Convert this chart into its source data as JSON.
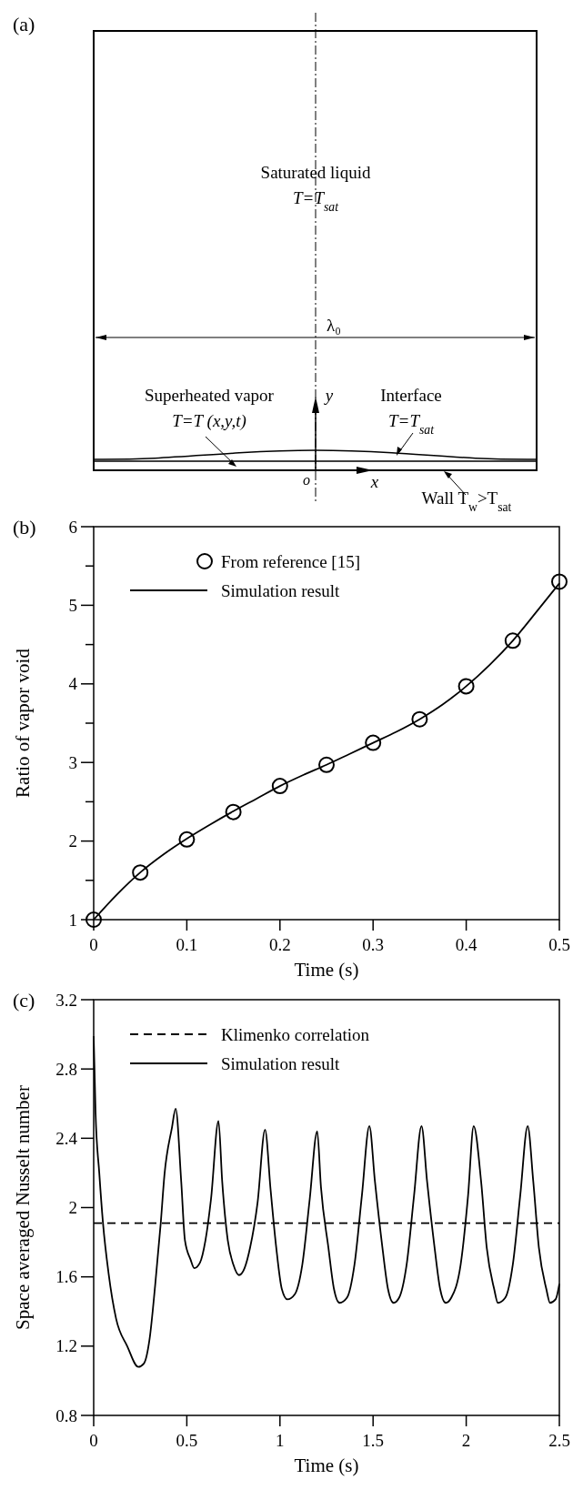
{
  "chart_data": [
    {
      "type": "other",
      "title": "(a)",
      "annotations": [
        "Saturated liquid",
        "T=T$_{sat}$",
        "λ₀",
        "Superheated vapor",
        "T=T (x,y,t)",
        "Interface",
        "T=T$_{sat}$",
        "y",
        "o",
        "x",
        "Wall  T$_{w}$>T$_{sat}$"
      ]
    },
    {
      "type": "line",
      "title": "(b)",
      "xlabel": "Time (s)",
      "ylabel": "Ratio of vapor void",
      "xlim": [
        0,
        0.5
      ],
      "ylim": [
        1,
        6
      ],
      "xticks": [
        0,
        0.1,
        0.2,
        0.3,
        0.4,
        0.5
      ],
      "yticks": [
        1,
        {
          "value": 1.5,
          "label": null
        },
        2,
        {
          "value": 2.5,
          "label": null
        },
        3,
        {
          "value": 3.5,
          "label": null
        },
        4,
        {
          "value": 4.5,
          "label": null
        },
        5,
        {
          "value": 5.5,
          "label": null
        },
        6
      ],
      "legend": "top left",
      "series": [
        {
          "name": "From reference [15]",
          "type": "scatter",
          "marker": "circle",
          "color": "#000000",
          "x": [
            0,
            0.05,
            0.1,
            0.15,
            0.2,
            0.25,
            0.3,
            0.35,
            0.4,
            0.45,
            0.5
          ],
          "values": [
            1,
            1.6,
            2.02,
            2.37,
            2.7,
            2.97,
            3.25,
            3.55,
            3.97,
            4.55,
            5.3
          ]
        },
        {
          "name": "Simulation result",
          "type": "line",
          "line_style": "solid",
          "color": "#000000",
          "x": [
            0,
            0.025,
            0.05,
            0.075,
            0.1,
            0.125,
            0.15,
            0.175,
            0.2,
            0.225,
            0.25,
            0.275,
            0.3,
            0.325,
            0.35,
            0.375,
            0.4,
            0.425,
            0.45,
            0.475,
            0.5
          ],
          "values": [
            1,
            1.32,
            1.6,
            1.83,
            2.03,
            2.21,
            2.38,
            2.54,
            2.7,
            2.84,
            2.97,
            3.11,
            3.25,
            3.39,
            3.55,
            3.74,
            3.97,
            4.24,
            4.55,
            4.91,
            5.28
          ]
        }
      ]
    },
    {
      "type": "line",
      "title": "(c)",
      "xlabel": "Time (s)",
      "ylabel": "Space averaged Nusselt number",
      "xlim": [
        0,
        2.5
      ],
      "ylim": [
        0.8,
        3.2
      ],
      "xticks": [
        0,
        0.5,
        1,
        1.5,
        2,
        2.5
      ],
      "yticks": [
        0.8,
        1.2,
        1.6,
        2,
        2.4,
        2.8,
        3.2
      ],
      "legend": "top left",
      "series": [
        {
          "name": "Klimenko correlation",
          "type": "line",
          "line_style": "dashed",
          "color": "#000000",
          "x": [
            0,
            2.5
          ],
          "values": [
            1.91,
            1.91
          ]
        },
        {
          "name": "Simulation result",
          "type": "line",
          "line_style": "solid",
          "color": "#000000",
          "x": [
            0,
            0.01,
            0.03,
            0.05,
            0.08,
            0.12,
            0.18,
            0.24,
            0.27,
            0.3,
            0.33,
            0.36,
            0.38,
            0.42,
            0.44,
            0.47,
            0.49,
            0.52,
            0.54,
            0.57,
            0.6,
            0.63,
            0.67,
            0.69,
            0.72,
            0.75,
            0.78,
            0.81,
            0.84,
            0.88,
            0.92,
            0.95,
            0.98,
            1.01,
            1.04,
            1.08,
            1.12,
            1.16,
            1.2,
            1.22,
            1.26,
            1.29,
            1.32,
            1.36,
            1.4,
            1.44,
            1.48,
            1.51,
            1.55,
            1.58,
            1.61,
            1.64,
            1.68,
            1.72,
            1.76,
            1.79,
            1.83,
            1.86,
            1.89,
            1.92,
            1.97,
            2.01,
            2.04,
            2.08,
            2.11,
            2.15,
            2.17,
            2.21,
            2.25,
            2.29,
            2.33,
            2.36,
            2.39,
            2.43,
            2.45,
            2.48,
            2.5
          ],
          "values": [
            2.99,
            2.55,
            2.2,
            1.91,
            1.62,
            1.36,
            1.2,
            1.08,
            1.1,
            1.24,
            1.55,
            1.91,
            2.19,
            2.46,
            2.57,
            2.15,
            1.81,
            1.7,
            1.65,
            1.68,
            1.81,
            2.05,
            2.5,
            2.15,
            1.81,
            1.67,
            1.61,
            1.65,
            1.77,
            2.03,
            2.45,
            2.1,
            1.77,
            1.53,
            1.47,
            1.5,
            1.67,
            2.05,
            2.44,
            2.12,
            1.77,
            1.53,
            1.45,
            1.48,
            1.67,
            2.07,
            2.47,
            2.15,
            1.77,
            1.53,
            1.45,
            1.48,
            1.67,
            2.07,
            2.47,
            2.15,
            1.77,
            1.53,
            1.45,
            1.48,
            1.67,
            2.07,
            2.47,
            2.15,
            1.77,
            1.53,
            1.45,
            1.48,
            1.67,
            2.07,
            2.47,
            2.15,
            1.77,
            1.53,
            1.45,
            1.47,
            1.56
          ]
        }
      ]
    }
  ]
}
